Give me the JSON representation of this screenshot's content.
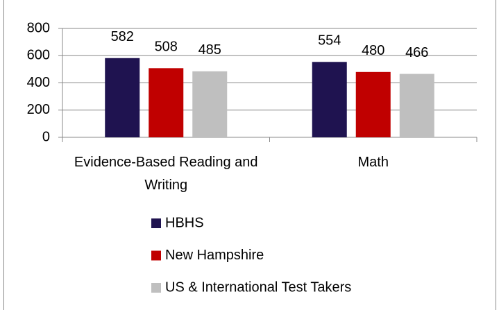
{
  "chart_data": {
    "type": "bar",
    "categories": [
      "Evidence-Based Reading and Writing",
      "Math"
    ],
    "series": [
      {
        "name": "HBHS",
        "color": "#1f1350",
        "values": [
          582,
          554
        ]
      },
      {
        "name": "New Hampshire",
        "color": "#c00000",
        "values": [
          508,
          480
        ]
      },
      {
        "name": "US & International Test Takers",
        "color": "#bfbfbf",
        "values": [
          485,
          466
        ]
      }
    ],
    "ylim": [
      0,
      800
    ],
    "yticks": [
      0,
      200,
      400,
      600,
      800
    ],
    "grid": true,
    "legend": "bottom"
  }
}
